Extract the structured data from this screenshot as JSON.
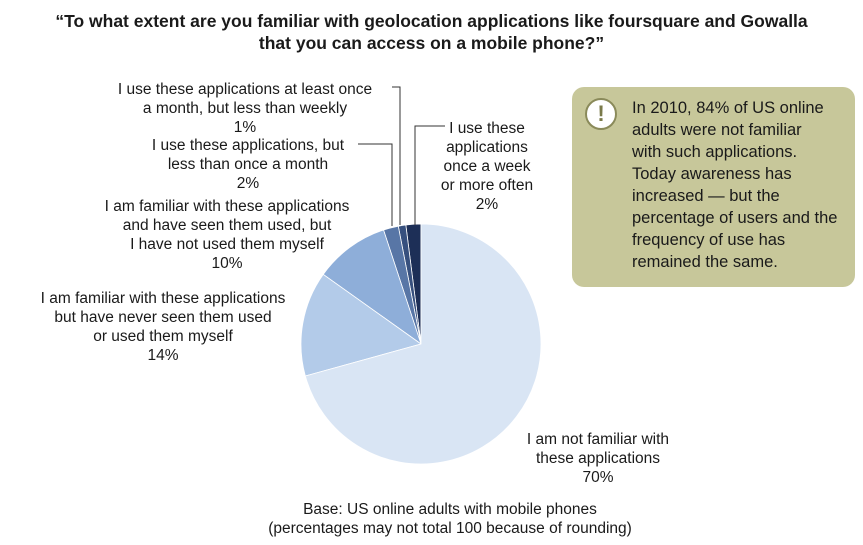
{
  "title": {
    "line1": "“To what extent are you familiar with geolocation applications like foursquare and Gowalla",
    "line2": "that you can access on a mobile phone?”"
  },
  "callout": {
    "icon": "exclamation-icon",
    "lines": [
      "In 2010, 84% of US online",
      "adults were not familiar",
      "with such applications.",
      "Today awareness has",
      "increased — but the",
      "percentage of users and the",
      "frequency of use has",
      "remained the same."
    ]
  },
  "base_note": {
    "line1": "Base: US online adults with mobile phones",
    "line2": "(percentages may not total 100 because of rounding)"
  },
  "chart_data": {
    "type": "pie",
    "slices": [
      {
        "label_lines": [
          "I use these",
          "applications",
          "once a week",
          "or more often"
        ],
        "pct_label": "2%",
        "value": 2,
        "color": "#1d2f57"
      },
      {
        "label_lines": [
          "I use these applications at least once",
          "a month, but less than weekly"
        ],
        "pct_label": "1%",
        "value": 1,
        "color": "#37507e"
      },
      {
        "label_lines": [
          "I use these applications, but",
          "less than once a month"
        ],
        "pct_label": "2%",
        "value": 2,
        "color": "#5876a6"
      },
      {
        "label_lines": [
          "I am familiar with these applications",
          "and have seen them used, but",
          "I have not used them myself"
        ],
        "pct_label": "10%",
        "value": 10,
        "color": "#8eaed9"
      },
      {
        "label_lines": [
          "I am familiar with these applications",
          "but have never seen them used",
          "or used them myself"
        ],
        "pct_label": "14%",
        "value": 14,
        "color": "#b3cbe9"
      },
      {
        "label_lines": [
          "I am not familiar with",
          "these applications"
        ],
        "pct_label": "70%",
        "value": 70,
        "color": "#d9e5f4"
      }
    ]
  }
}
